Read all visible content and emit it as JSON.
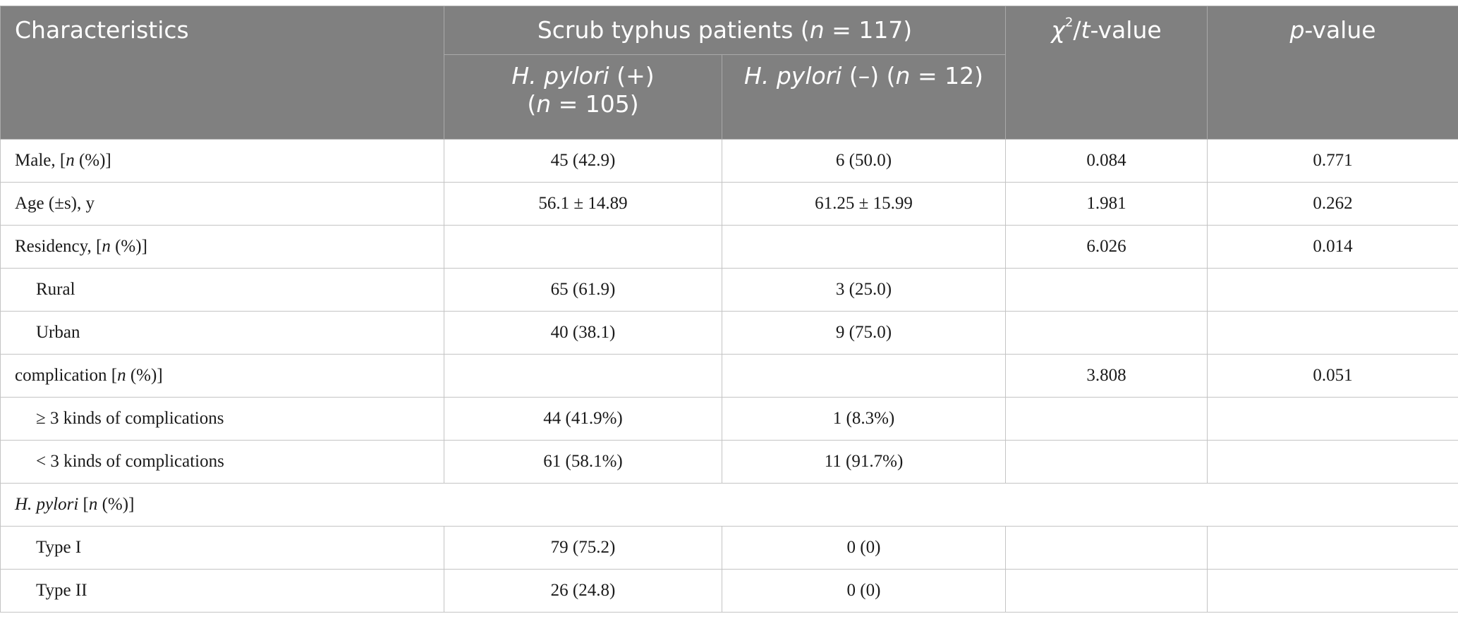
{
  "header": {
    "characteristics": "Characteristics",
    "group_label": "Scrub typhus patients (",
    "group_n": "n",
    "group_value": " = 117)",
    "pos_name": "H. pylori",
    "pos_sign": " (+)",
    "pos_n_open": "(",
    "pos_n": "n",
    "pos_n_value": " = 105)",
    "neg_name": "H. pylori",
    "neg_sign": " (–) (",
    "neg_n": "n",
    "neg_n_value": " = 12)",
    "chi_symbol": "χ",
    "chi_sup": "2",
    "chi_slash": "/",
    "chi_t": "t",
    "chi_rest": "-value",
    "p_letter": "p",
    "p_rest": "-value"
  },
  "rows": [
    {
      "pre": "Male, [",
      "it": "n",
      "post": " (%)]",
      "pos": "45 (42.9)",
      "neg": "6 (50.0)",
      "stat": "0.084",
      "p": "0.771"
    },
    {
      "pre": "Age (±s), y",
      "it": "",
      "post": "",
      "pos": "56.1 ± 14.89",
      "neg": "61.25 ± 15.99",
      "stat": "1.981",
      "p": "0.262"
    },
    {
      "pre": "Residency, [",
      "it": "n",
      "post": " (%)]",
      "pos": "",
      "neg": "",
      "stat": "6.026",
      "p": "0.014"
    },
    {
      "pre": "Rural",
      "it": "",
      "post": "",
      "pos": "65 (61.9)",
      "neg": "3 (25.0)",
      "stat": "",
      "p": ""
    },
    {
      "pre": "Urban",
      "it": "",
      "post": "",
      "pos": "40 (38.1)",
      "neg": "9 (75.0)",
      "stat": "",
      "p": ""
    },
    {
      "pre": "complication [",
      "it": "n",
      "post": " (%)]",
      "pos": "",
      "neg": "",
      "stat": "3.808",
      "p": "0.051"
    },
    {
      "pre": "≥ 3 kinds of complications",
      "it": "",
      "post": "",
      "pos": "44 (41.9%)",
      "neg": "1 (8.3%)",
      "stat": "",
      "p": ""
    },
    {
      "pre": "< 3 kinds of complications",
      "it": "",
      "post": "",
      "pos": "61 (58.1%)",
      "neg": "11 (91.7%)",
      "stat": "",
      "p": ""
    },
    {
      "pre": "H. pylori",
      "it": "n",
      "post": " (%)]",
      "mid": " [",
      "pos": "",
      "neg": "",
      "stat": "",
      "p": ""
    },
    {
      "pre": "Type I",
      "it": "",
      "post": "",
      "pos": "79 (75.2)",
      "neg": "0 (0)",
      "stat": "",
      "p": ""
    },
    {
      "pre": "Type II",
      "it": "",
      "post": "",
      "pos": "26 (24.8)",
      "neg": "0 (0)",
      "stat": "",
      "p": ""
    }
  ]
}
